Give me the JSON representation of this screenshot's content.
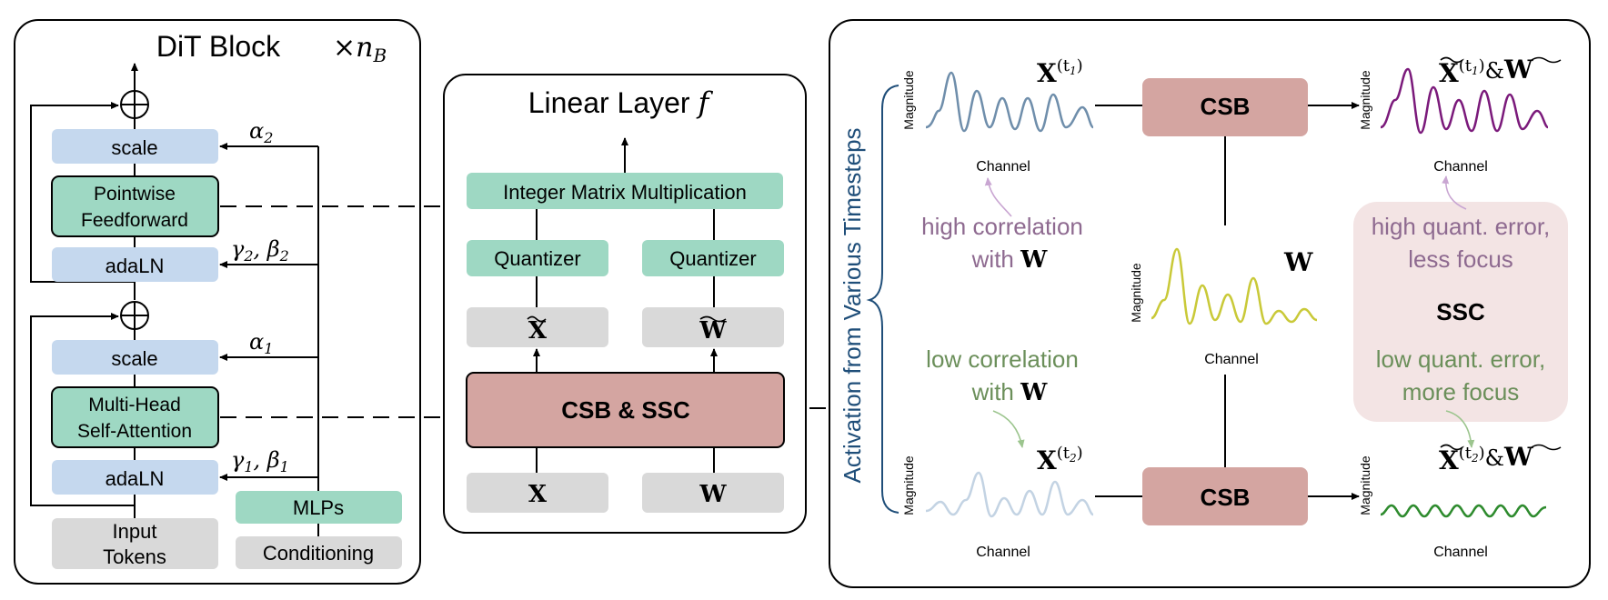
{
  "dit": {
    "title": "DiT Block",
    "repeat": "×",
    "repeat_var": "n",
    "repeat_sub": "B",
    "scale_top": "scale",
    "pointwise_line1": "Pointwise",
    "pointwise_line2": "Feedforward",
    "adaln_top": "adaLN",
    "scale_bottom": "scale",
    "mhsa_line1": "Multi-Head",
    "mhsa_line2": "Self-Attention",
    "adaln_bottom": "adaLN",
    "input_line1": "Input",
    "input_line2": "Tokens",
    "mlps": "MLPs",
    "conditioning": "Conditioning",
    "alpha2": "α",
    "alpha2_sub": "2",
    "gb2": "γ",
    "gb2_sub": "2",
    "gb2_b": ", β",
    "gb2_b_sub": "2",
    "alpha1": "α",
    "alpha1_sub": "1",
    "gb1": "γ",
    "gb1_sub": "1",
    "gb1_b": ", β",
    "gb1_b_sub": "1"
  },
  "linear": {
    "title": "Linear Layer ",
    "title_var": "f",
    "int_matmul": "Integer Matrix Multiplication",
    "quantizer_left": "Quantizer",
    "quantizer_right": "Quantizer",
    "x_tilde": "X",
    "w_tilde": "W",
    "csb_ssc": "CSB & SSC",
    "x": "X",
    "w": "W"
  },
  "right": {
    "side_label": "Activation from Various Timesteps",
    "magnitude": "Magnitude",
    "channel": "Channel",
    "x_t1": "X",
    "x_t1_sup": "(t",
    "x_t1_sub": "1",
    "x_t2": "X",
    "x_t2_sup": "(t",
    "x_t2_sub": "2",
    "w": "W",
    "csb_top": "CSB",
    "csb_bottom": "CSB",
    "out_t1_x": "X",
    "out_t1_sub": "1",
    "out_amp": "&",
    "out_w": "W",
    "out_t2_x": "X",
    "out_t2_sub": "2",
    "high_corr_1": "high correlation",
    "high_corr_2": "with ",
    "low_corr_1": "low correlation",
    "low_corr_2": "with ",
    "high_err_1": "high quant. error,",
    "high_err_2": "less focus",
    "ssc": "SSC",
    "low_err_1": "low quant. error,",
    "low_err_2": "more focus"
  },
  "colors": {
    "blue_box": "#c5d8ee",
    "green_box": "#9ed8c3",
    "gray_box": "#d9d9d9",
    "red_box": "#d4a5a1",
    "ssc_bg": "#f3e4e4",
    "wave_t1": "#6f8eab",
    "wave_t1_out": "#7b1a7b",
    "wave_w": "#c9c938",
    "wave_t2": "#c3d3e3",
    "wave_t2_out": "#2e8b2e",
    "purple_text": "#8e6a90",
    "green_text": "#6b8f5a",
    "navy_text": "#1f4e79"
  }
}
